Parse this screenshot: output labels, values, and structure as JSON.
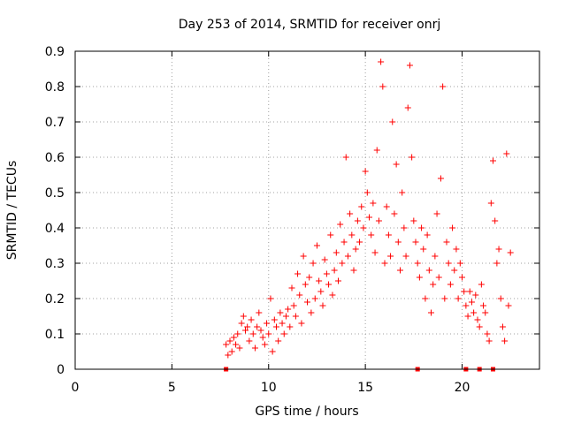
{
  "chart_data": {
    "type": "scatter",
    "title": "Day 253 of 2014, SRMTID for receiver onrj",
    "xlabel": "GPS time / hours",
    "ylabel": "SRMTID / TECUs",
    "xlim": [
      0,
      24
    ],
    "ylim": [
      0,
      0.9
    ],
    "xticks": [
      0,
      5,
      10,
      15,
      20
    ],
    "xtick_labels": [
      "0",
      "5",
      "10",
      "15",
      "20"
    ],
    "yticks": [
      0,
      0.1,
      0.2,
      0.3,
      0.4,
      0.5,
      0.6,
      0.7,
      0.8,
      0.9
    ],
    "ytick_labels": [
      "0",
      "0.1",
      "0.2",
      "0.3",
      "0.4",
      "0.5",
      "0.6",
      "0.7",
      "0.8",
      "0.9"
    ],
    "grid": true,
    "marker": "+",
    "color": "#ff0000",
    "zero_markers_x": [
      7.8,
      17.7,
      20.2,
      20.9,
      21.6
    ],
    "series": [
      {
        "name": "SRMTID",
        "points": [
          [
            7.8,
            0.07
          ],
          [
            7.9,
            0.04
          ],
          [
            8.0,
            0.08
          ],
          [
            8.1,
            0.05
          ],
          [
            8.2,
            0.09
          ],
          [
            8.3,
            0.07
          ],
          [
            8.4,
            0.1
          ],
          [
            8.5,
            0.06
          ],
          [
            8.6,
            0.13
          ],
          [
            8.7,
            0.15
          ],
          [
            8.8,
            0.11
          ],
          [
            8.9,
            0.12
          ],
          [
            9.0,
            0.08
          ],
          [
            9.1,
            0.14
          ],
          [
            9.2,
            0.1
          ],
          [
            9.3,
            0.06
          ],
          [
            9.4,
            0.12
          ],
          [
            9.5,
            0.16
          ],
          [
            9.6,
            0.11
          ],
          [
            9.7,
            0.09
          ],
          [
            9.8,
            0.07
          ],
          [
            9.9,
            0.13
          ],
          [
            10.0,
            0.1
          ],
          [
            10.1,
            0.2
          ],
          [
            10.2,
            0.05
          ],
          [
            10.3,
            0.14
          ],
          [
            10.4,
            0.12
          ],
          [
            10.5,
            0.08
          ],
          [
            10.6,
            0.16
          ],
          [
            10.7,
            0.13
          ],
          [
            10.8,
            0.1
          ],
          [
            10.9,
            0.15
          ],
          [
            11.0,
            0.17
          ],
          [
            11.1,
            0.12
          ],
          [
            11.2,
            0.23
          ],
          [
            11.3,
            0.18
          ],
          [
            11.4,
            0.15
          ],
          [
            11.5,
            0.27
          ],
          [
            11.6,
            0.21
          ],
          [
            11.7,
            0.13
          ],
          [
            11.8,
            0.32
          ],
          [
            11.9,
            0.24
          ],
          [
            12.0,
            0.19
          ],
          [
            12.1,
            0.26
          ],
          [
            12.2,
            0.16
          ],
          [
            12.3,
            0.3
          ],
          [
            12.4,
            0.2
          ],
          [
            12.5,
            0.35
          ],
          [
            12.6,
            0.25
          ],
          [
            12.7,
            0.22
          ],
          [
            12.8,
            0.18
          ],
          [
            12.9,
            0.31
          ],
          [
            13.0,
            0.27
          ],
          [
            13.1,
            0.24
          ],
          [
            13.2,
            0.38
          ],
          [
            13.3,
            0.21
          ],
          [
            13.4,
            0.28
          ],
          [
            13.5,
            0.33
          ],
          [
            13.6,
            0.25
          ],
          [
            13.7,
            0.41
          ],
          [
            13.8,
            0.3
          ],
          [
            13.9,
            0.36
          ],
          [
            14.0,
            0.6
          ],
          [
            14.1,
            0.32
          ],
          [
            14.2,
            0.44
          ],
          [
            14.3,
            0.38
          ],
          [
            14.4,
            0.28
          ],
          [
            14.5,
            0.34
          ],
          [
            14.6,
            0.42
          ],
          [
            14.7,
            0.36
          ],
          [
            14.8,
            0.46
          ],
          [
            14.9,
            0.4
          ],
          [
            15.0,
            0.56
          ],
          [
            15.1,
            0.5
          ],
          [
            15.2,
            0.43
          ],
          [
            15.3,
            0.38
          ],
          [
            15.4,
            0.47
          ],
          [
            15.5,
            0.33
          ],
          [
            15.6,
            0.62
          ],
          [
            15.7,
            0.42
          ],
          [
            15.8,
            0.87
          ],
          [
            15.9,
            0.8
          ],
          [
            16.0,
            0.3
          ],
          [
            16.1,
            0.46
          ],
          [
            16.2,
            0.38
          ],
          [
            16.3,
            0.32
          ],
          [
            16.4,
            0.7
          ],
          [
            16.5,
            0.44
          ],
          [
            16.6,
            0.58
          ],
          [
            16.7,
            0.36
          ],
          [
            16.8,
            0.28
          ],
          [
            16.9,
            0.5
          ],
          [
            17.0,
            0.4
          ],
          [
            17.1,
            0.32
          ],
          [
            17.2,
            0.74
          ],
          [
            17.3,
            0.86
          ],
          [
            17.4,
            0.6
          ],
          [
            17.5,
            0.42
          ],
          [
            17.6,
            0.36
          ],
          [
            17.7,
            0.3
          ],
          [
            17.8,
            0.26
          ],
          [
            17.9,
            0.4
          ],
          [
            18.0,
            0.34
          ],
          [
            18.1,
            0.2
          ],
          [
            18.2,
            0.38
          ],
          [
            18.3,
            0.28
          ],
          [
            18.4,
            0.16
          ],
          [
            18.5,
            0.24
          ],
          [
            18.6,
            0.32
          ],
          [
            18.7,
            0.44
          ],
          [
            18.8,
            0.26
          ],
          [
            18.9,
            0.54
          ],
          [
            19.0,
            0.8
          ],
          [
            19.1,
            0.2
          ],
          [
            19.2,
            0.36
          ],
          [
            19.3,
            0.3
          ],
          [
            19.4,
            0.24
          ],
          [
            19.5,
            0.4
          ],
          [
            19.6,
            0.28
          ],
          [
            19.7,
            0.34
          ],
          [
            19.8,
            0.2
          ],
          [
            19.9,
            0.3
          ],
          [
            20.0,
            0.26
          ],
          [
            20.1,
            0.22
          ],
          [
            20.2,
            0.18
          ],
          [
            20.3,
            0.15
          ],
          [
            20.4,
            0.22
          ],
          [
            20.5,
            0.19
          ],
          [
            20.6,
            0.16
          ],
          [
            20.7,
            0.21
          ],
          [
            20.8,
            0.14
          ],
          [
            20.9,
            0.12
          ],
          [
            21.0,
            0.24
          ],
          [
            21.1,
            0.18
          ],
          [
            21.2,
            0.16
          ],
          [
            21.3,
            0.1
          ],
          [
            21.4,
            0.08
          ],
          [
            21.5,
            0.47
          ],
          [
            21.6,
            0.59
          ],
          [
            21.7,
            0.42
          ],
          [
            21.8,
            0.3
          ],
          [
            21.9,
            0.34
          ],
          [
            22.0,
            0.2
          ],
          [
            22.1,
            0.12
          ],
          [
            22.2,
            0.08
          ],
          [
            22.3,
            0.61
          ],
          [
            22.4,
            0.18
          ],
          [
            22.5,
            0.33
          ]
        ]
      }
    ]
  }
}
